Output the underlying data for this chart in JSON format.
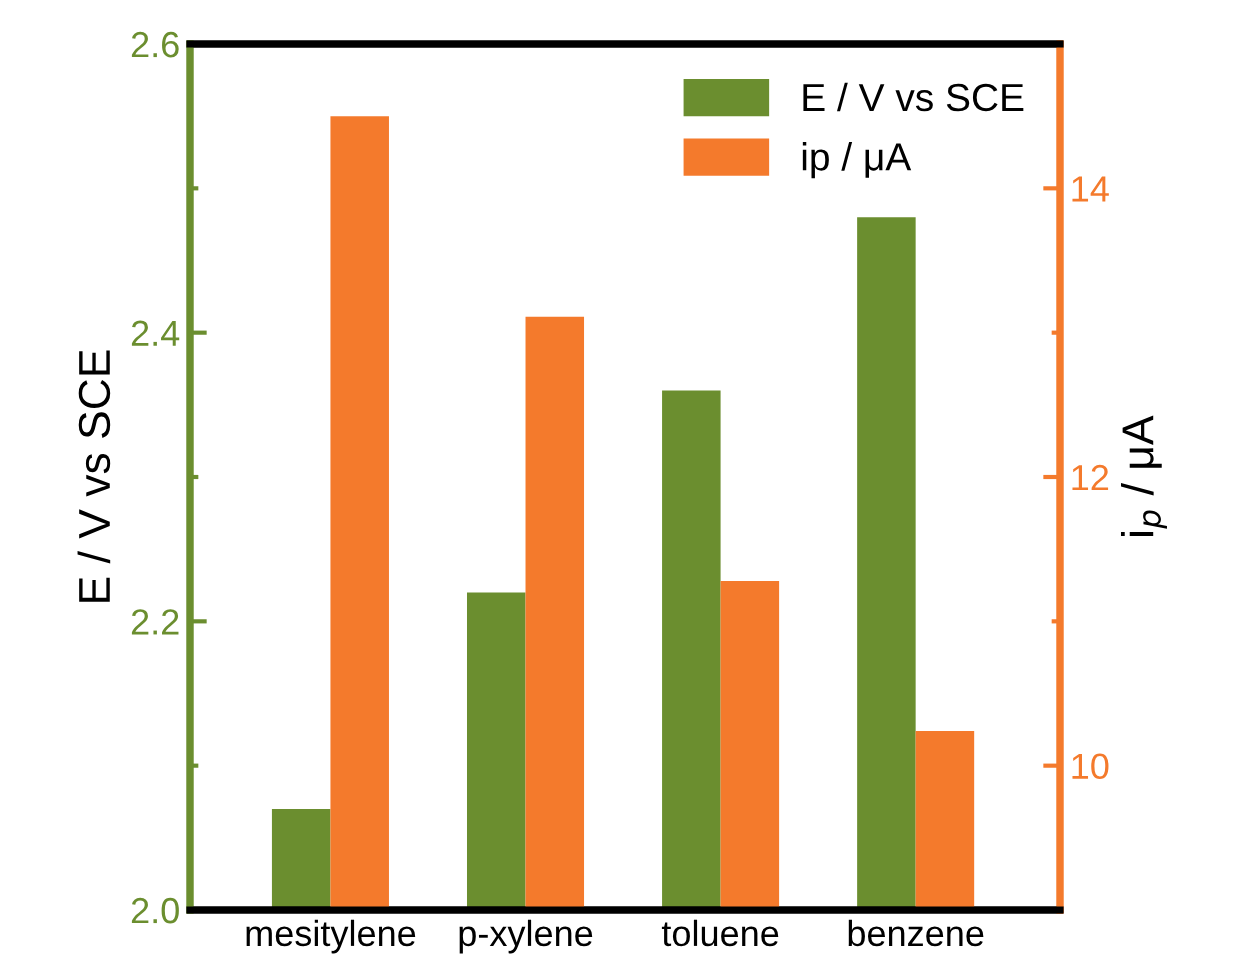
{
  "chart_data": {
    "type": "bar",
    "categories": [
      "mesitylene",
      "p-xylene",
      "toluene",
      "benzene"
    ],
    "series": [
      {
        "name": "E / V vs SCE",
        "color": "#6b8e2f",
        "values": [
          2.07,
          2.22,
          2.36,
          2.48
        ]
      },
      {
        "name": "ip / μA",
        "color": "#f47a2c",
        "values": [
          14.5,
          13.11,
          11.28,
          10.24
        ],
        "axis": "y2"
      }
    ],
    "ylabel": "E / V vs SCE",
    "y2label": "i$_{p}$ / μA",
    "ylim": [
      2.0,
      2.6
    ],
    "yticks": [
      {
        "value": 2.0,
        "label": "2.0"
      },
      {
        "value": 2.2,
        "label": "2.2"
      },
      {
        "value": 2.4,
        "label": "2.4"
      },
      {
        "value": 2.6,
        "label": "2.6"
      }
    ],
    "y2lim": [
      9,
      15
    ],
    "y2ticks": [
      10,
      12,
      14
    ],
    "legend": "top right",
    "grid": false
  }
}
